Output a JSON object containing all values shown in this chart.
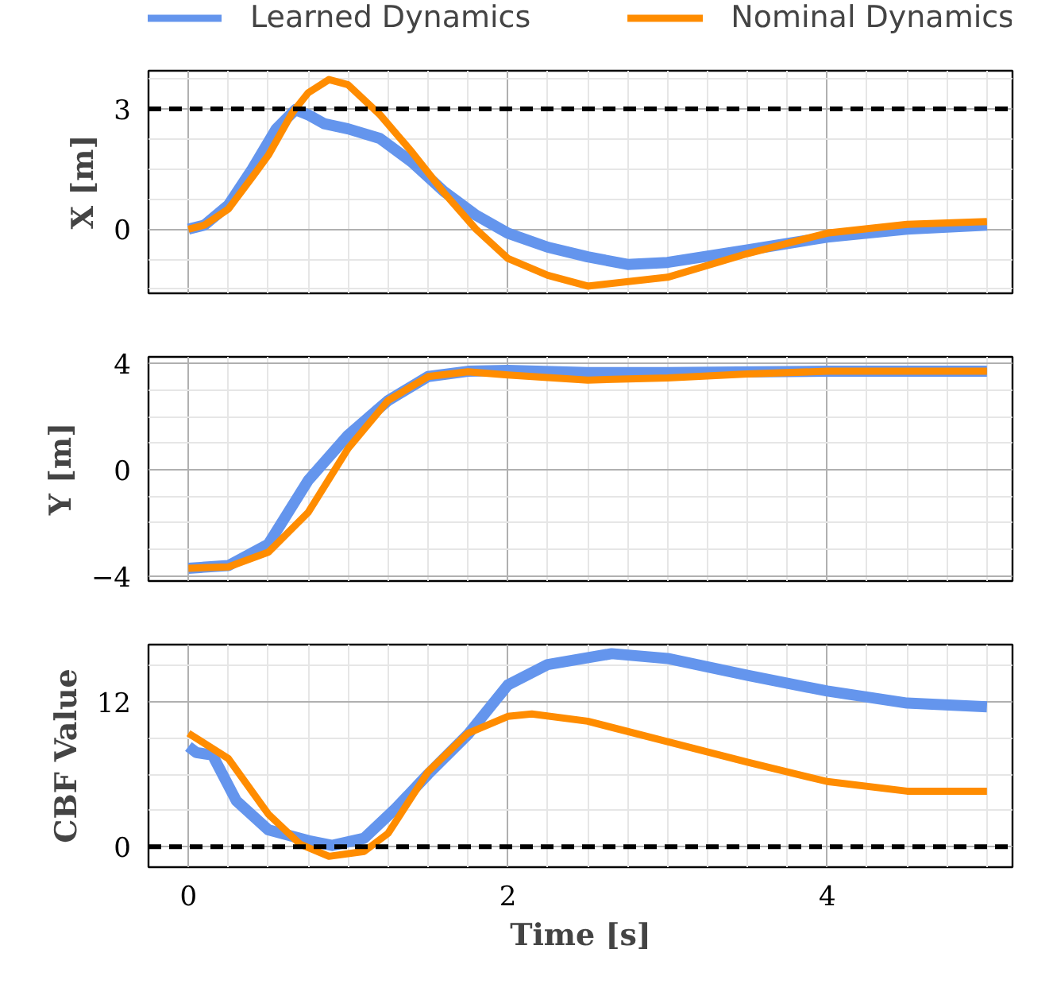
{
  "chart_data": [
    {
      "type": "line",
      "ylabel": "X [m]",
      "legend": "top",
      "grid": true,
      "tick_labels": "y",
      "line_style": "solid",
      "marker": "none",
      "xlim": [
        -0.25,
        5.16
      ],
      "xticks": [
        0,
        2,
        4
      ],
      "ylim": [
        -1.6,
        3.95
      ],
      "yticks": [
        0,
        3
      ],
      "ref_lines": [
        {
          "axis": "y",
          "value": 3,
          "color": "#000000",
          "line_style": "dashed"
        }
      ],
      "series": [
        {
          "name": "Learned Dynamics",
          "color": "#6495ed",
          "x": [
            0,
            0.1,
            0.25,
            0.4,
            0.55,
            0.67,
            0.75,
            0.85,
            1.0,
            1.2,
            1.4,
            1.6,
            1.8,
            2.0,
            2.25,
            2.5,
            2.75,
            3.0,
            3.5,
            4.0,
            4.5,
            5.0
          ],
          "values": [
            0,
            0.1,
            0.6,
            1.5,
            2.5,
            2.98,
            2.85,
            2.63,
            2.5,
            2.26,
            1.67,
            0.94,
            0.35,
            -0.1,
            -0.45,
            -0.69,
            -0.88,
            -0.83,
            -0.52,
            -0.2,
            0.0,
            0.1
          ]
        },
        {
          "name": "Nominal Dynamics",
          "color": "#ff8c00",
          "x": [
            0,
            0.1,
            0.25,
            0.4,
            0.5,
            0.65,
            0.75,
            0.88,
            1.0,
            1.2,
            1.4,
            1.6,
            1.8,
            2.0,
            2.25,
            2.5,
            3.0,
            3.5,
            4.0,
            4.5,
            5.0
          ],
          "values": [
            0,
            0.1,
            0.5,
            1.3,
            1.84,
            2.9,
            3.4,
            3.73,
            3.6,
            2.85,
            1.92,
            0.91,
            0.0,
            -0.73,
            -1.15,
            -1.42,
            -1.2,
            -0.61,
            -0.1,
            0.12,
            0.19
          ]
        }
      ]
    },
    {
      "type": "line",
      "ylabel": "Y [m]",
      "grid": true,
      "tick_labels": "y",
      "line_style": "solid",
      "marker": "none",
      "xlim": [
        -0.25,
        5.16
      ],
      "xticks": [
        0,
        2,
        4
      ],
      "ylim": [
        -4.18,
        4.24
      ],
      "yticks": [
        -4,
        0,
        4
      ],
      "series": [
        {
          "color": "#6495ed",
          "x": [
            0,
            0.25,
            0.5,
            0.75,
            1.0,
            1.25,
            1.5,
            1.75,
            2.0,
            2.5,
            3.0,
            4.0,
            5.0
          ],
          "values": [
            -3.7,
            -3.6,
            -2.8,
            -0.4,
            1.3,
            2.6,
            3.5,
            3.7,
            3.73,
            3.65,
            3.65,
            3.7,
            3.7
          ]
        },
        {
          "color": "#ff8c00",
          "x": [
            0,
            0.25,
            0.5,
            0.75,
            1.0,
            1.25,
            1.5,
            1.75,
            2.0,
            2.5,
            3.0,
            3.5,
            4.0,
            5.0
          ],
          "values": [
            -3.7,
            -3.65,
            -3.1,
            -1.6,
            0.8,
            2.6,
            3.5,
            3.68,
            3.56,
            3.37,
            3.45,
            3.6,
            3.7,
            3.7
          ]
        }
      ]
    },
    {
      "type": "line",
      "ylabel": "CBF Value",
      "xlabel": "Time [s]",
      "grid": true,
      "line_style": "solid",
      "marker": "none",
      "xlim": [
        -0.25,
        5.16
      ],
      "xticks": [
        0,
        2,
        4
      ],
      "ylim": [
        -1.7,
        16.75
      ],
      "yticks": [
        0,
        12
      ],
      "ref_lines": [
        {
          "axis": "y",
          "value": 0,
          "color": "#000000",
          "line_style": "dashed"
        }
      ],
      "series": [
        {
          "color": "#6495ed",
          "x": [
            0,
            0.05,
            0.15,
            0.3,
            0.5,
            0.75,
            0.9,
            1.1,
            1.3,
            1.5,
            1.75,
            2.0,
            2.25,
            2.65,
            3.0,
            3.5,
            4.0,
            4.5,
            5.0
          ],
          "values": [
            8.3,
            7.8,
            7.6,
            3.8,
            1.4,
            0.5,
            0.1,
            0.7,
            3.2,
            6.0,
            9.3,
            13.4,
            15.1,
            16.0,
            15.6,
            14.2,
            12.9,
            11.9,
            11.6
          ]
        },
        {
          "color": "#ff8c00",
          "x": [
            0,
            0.25,
            0.5,
            0.7,
            0.88,
            1.1,
            1.25,
            1.5,
            1.75,
            2.0,
            2.15,
            2.5,
            3.0,
            3.5,
            4.0,
            4.5,
            5.0
          ],
          "values": [
            9.4,
            7.3,
            2.7,
            0.2,
            -0.8,
            -0.4,
            1.1,
            6.2,
            9.4,
            10.8,
            11.0,
            10.4,
            8.7,
            7.0,
            5.4,
            4.6,
            4.6
          ]
        }
      ]
    }
  ]
}
